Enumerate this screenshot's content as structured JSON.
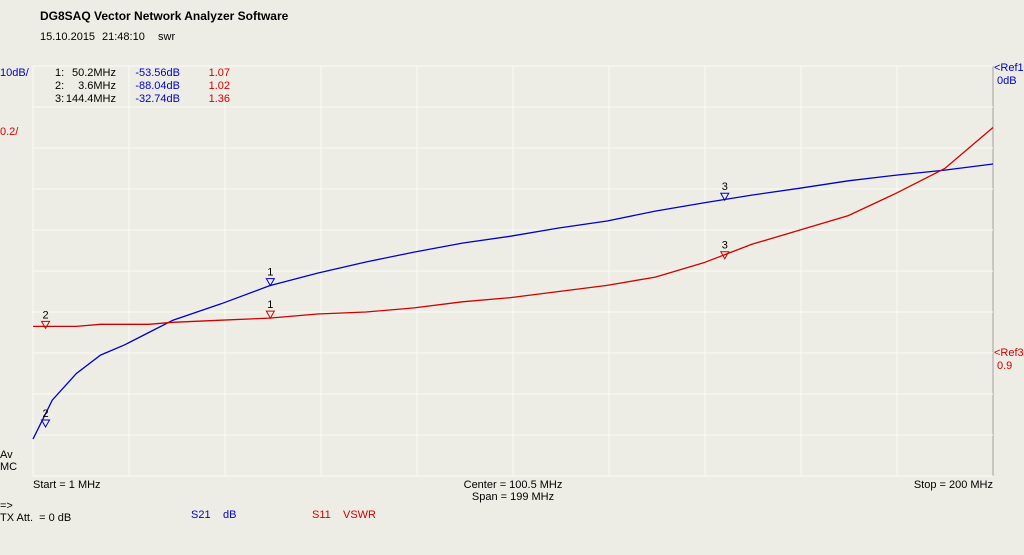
{
  "header": {
    "title": "DG8SAQ Vector Network Analyzer Software",
    "date": "15.10.2015",
    "time": "21:48:10",
    "mode": "swr"
  },
  "chart_data": {
    "type": "line",
    "scale_left": "10dB/",
    "scale_right": "0.2/",
    "ref1": "<Ref1",
    "ref1_value": "0dB",
    "ref3": "<Ref3",
    "ref3_value": "0.9",
    "x": [
      1,
      5,
      10,
      15,
      20,
      25,
      30,
      40,
      50,
      60,
      70,
      80,
      90,
      100,
      110,
      120,
      130,
      140,
      150,
      160,
      170,
      180,
      190,
      200
    ],
    "xlim": [
      1,
      200
    ],
    "xticks": [
      1,
      20.9,
      40.8,
      60.7,
      80.6,
      100.5,
      120.4,
      140.3,
      160.2,
      180.1,
      200
    ],
    "ylim": [
      -100,
      0
    ],
    "yticks": [
      0,
      -10,
      -20,
      -30,
      -40,
      -50,
      -60,
      -70,
      -80,
      -90,
      -100
    ],
    "y2lim": [
      0.3,
      2.3
    ],
    "grid": true,
    "series": [
      {
        "name": "S21",
        "unit": "dB",
        "color": "#0000c8",
        "values": [
          -91,
          -81.5,
          -75,
          -70.5,
          -68,
          -65,
          -62,
          -58,
          -53.6,
          -50.5,
          -47.8,
          -45.4,
          -43.2,
          -41.5,
          -39.5,
          -37.8,
          -35.4,
          -33.4,
          -31.5,
          -29.8,
          -28,
          -26.6,
          -25.4,
          -23.9
        ]
      },
      {
        "name": "S11",
        "unit": "VSWR",
        "color": "#d00000",
        "axis": "y2",
        "values": [
          1.03,
          1.03,
          1.03,
          1.04,
          1.04,
          1.04,
          1.05,
          1.06,
          1.07,
          1.09,
          1.1,
          1.12,
          1.15,
          1.17,
          1.2,
          1.23,
          1.27,
          1.34,
          1.43,
          1.5,
          1.57,
          1.68,
          1.8,
          2.0
        ]
      }
    ],
    "markers": [
      {
        "index_label": "1:",
        "number": "1",
        "freq": 50.2,
        "freq_label": "50.2MHz",
        "s21": -53.56,
        "s21_label": "-53.56dB",
        "vswr": 1.07
      },
      {
        "index_label": "2:",
        "number": "2",
        "freq": 3.6,
        "freq_label": "3.6MHz",
        "s21": -88.04,
        "s21_label": "-88.04dB",
        "vswr": 1.02
      },
      {
        "index_label": "3:",
        "number": "3",
        "freq": 144.4,
        "freq_label": "144.4MHz",
        "s21": -32.74,
        "s21_label": "-32.74dB",
        "vswr": 1.36
      }
    ]
  },
  "status": {
    "avg": "Av",
    "mc": "MC",
    "start": "Start = 1 MHz",
    "center": "Center = 100.5 MHz",
    "span": "Span = 199 MHz",
    "stop": "Stop = 200 MHz",
    "arrow": "=>",
    "tx_att": "TX Att.  = 0 dB"
  }
}
